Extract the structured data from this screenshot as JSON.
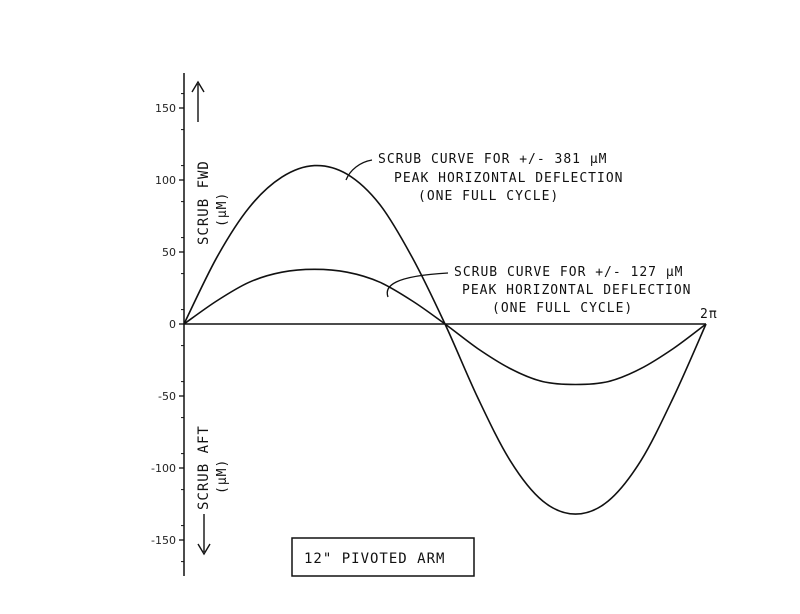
{
  "chart_data": {
    "type": "line",
    "x_end_label": "2π",
    "ylim": [
      -170,
      175
    ],
    "yticks": [
      150,
      100,
      50,
      0,
      -50,
      -100,
      -150
    ],
    "ytick_labels": [
      "150",
      "100",
      "50",
      "0",
      "-50",
      "-100",
      "-150"
    ],
    "ylabel_upper": [
      "SCRUB FWD",
      "(μM)"
    ],
    "ylabel_lower": [
      "SCRUB AFT",
      "(μM)"
    ],
    "series": [
      {
        "name": "scrub-381",
        "x_phase_fraction": [
          0,
          0.0625,
          0.125,
          0.1875,
          0.25,
          0.3125,
          0.375,
          0.4375,
          0.5,
          0.5625,
          0.625,
          0.6875,
          0.75,
          0.8125,
          0.875,
          0.9375,
          1.0
        ],
        "values": [
          0,
          46,
          81,
          102,
          110,
          104,
          83,
          46,
          0,
          -51,
          -95,
          -123,
          -132,
          -123,
          -95,
          -51,
          0
        ],
        "annotation": [
          "SCRUB CURVE FOR +/- 381 μM",
          "PEAK HORIZONTAL DEFLECTION",
          "(ONE FULL CYCLE)"
        ]
      },
      {
        "name": "scrub-127",
        "x_phase_fraction": [
          0,
          0.0625,
          0.125,
          0.1875,
          0.25,
          0.3125,
          0.375,
          0.4375,
          0.5,
          0.5625,
          0.625,
          0.6875,
          0.75,
          0.8125,
          0.875,
          0.9375,
          1.0
        ],
        "values": [
          0,
          16,
          29,
          36,
          38,
          36,
          29,
          16,
          0,
          -17,
          -31,
          -40,
          -42,
          -40,
          -31,
          -17,
          0
        ],
        "annotation": [
          "SCRUB CURVE FOR +/- 127 μM",
          "PEAK HORIZONTAL DEFLECTION",
          "(ONE FULL CYCLE)"
        ]
      }
    ],
    "caption": "12\" PIVOTED ARM"
  }
}
